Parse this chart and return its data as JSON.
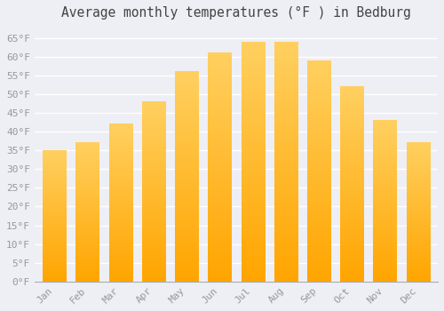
{
  "title": "Average monthly temperatures (°F ) in Bedburg",
  "months": [
    "Jan",
    "Feb",
    "Mar",
    "Apr",
    "May",
    "Jun",
    "Jul",
    "Aug",
    "Sep",
    "Oct",
    "Nov",
    "Dec"
  ],
  "values": [
    35,
    37,
    42,
    48,
    56,
    61,
    64,
    64,
    59,
    52,
    43,
    37
  ],
  "bar_color": "#FFA500",
  "bar_color_light": "#FFD060",
  "background_color": "#EEEEF5",
  "ylim": [
    0,
    68
  ],
  "yticks": [
    0,
    5,
    10,
    15,
    20,
    25,
    30,
    35,
    40,
    45,
    50,
    55,
    60,
    65
  ],
  "grid_color": "#FFFFFF",
  "title_fontsize": 10.5,
  "tick_fontsize": 8,
  "tick_color": "#999999",
  "title_color": "#444444"
}
